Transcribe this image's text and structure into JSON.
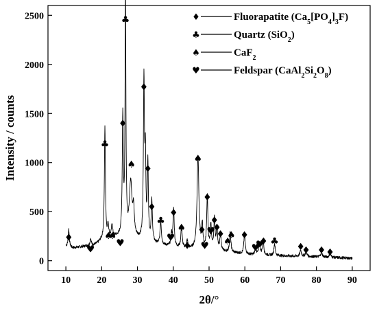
{
  "chart_data": {
    "type": "line",
    "title": "",
    "xlabel": "2θ/°",
    "ylabel": "Intensity / counts",
    "xlim": [
      5,
      95
    ],
    "ylim": [
      -100,
      2600
    ],
    "x_ticks": [
      10,
      20,
      30,
      40,
      50,
      60,
      70,
      80,
      90
    ],
    "y_ticks": [
      0,
      500,
      1000,
      1500,
      2000,
      2500
    ],
    "grid": false,
    "legend_position": "top-right",
    "legend": [
      {
        "symbol": "diamond",
        "glyph": "♦",
        "label": "Fluorapatite  (Ca5[PO4]3F)"
      },
      {
        "symbol": "club",
        "glyph": "♣",
        "label": "Quartz  (SiO2)"
      },
      {
        "symbol": "spade",
        "glyph": "♠",
        "label": "CaF2"
      },
      {
        "symbol": "heart",
        "glyph": "♥",
        "label": "Feldspar  (CaAl2Si2O8)"
      }
    ],
    "series": [
      {
        "baseline": [
          [
            10,
            150
          ],
          [
            12,
            130
          ],
          [
            14,
            140
          ],
          [
            16,
            150
          ],
          [
            18,
            160
          ],
          [
            19,
            180
          ],
          [
            20,
            210
          ],
          [
            24,
            240
          ],
          [
            30,
            215
          ],
          [
            34,
            175
          ],
          [
            38,
            150
          ],
          [
            44,
            120
          ],
          [
            50,
            105
          ],
          [
            56,
            85
          ],
          [
            62,
            60
          ],
          [
            70,
            50
          ],
          [
            80,
            40
          ],
          [
            90,
            25
          ]
        ],
        "peaks": [
          {
            "x": 10.8,
            "y": 180,
            "w": 0.18
          },
          {
            "x": 16.9,
            "y": 65,
            "w": 0.2
          },
          {
            "x": 20.9,
            "y": 1150,
            "w": 0.17
          },
          {
            "x": 21.8,
            "y": 130,
            "w": 0.2
          },
          {
            "x": 22.9,
            "y": 130,
            "w": 0.2
          },
          {
            "x": 25.9,
            "y": 1210,
            "w": 0.18
          },
          {
            "x": 26.65,
            "y": 2500,
            "w": 0.14
          },
          {
            "x": 28.1,
            "y": 560,
            "w": 0.45
          },
          {
            "x": 28.9,
            "y": 250,
            "w": 0.25
          },
          {
            "x": 31.8,
            "y": 1600,
            "w": 0.17
          },
          {
            "x": 32.2,
            "y": 820,
            "w": 0.17
          },
          {
            "x": 32.9,
            "y": 780,
            "w": 0.17
          },
          {
            "x": 34.0,
            "y": 420,
            "w": 0.2
          },
          {
            "x": 36.5,
            "y": 230,
            "w": 0.22
          },
          {
            "x": 39.5,
            "y": 120,
            "w": 0.2
          },
          {
            "x": 40.1,
            "y": 380,
            "w": 0.2
          },
          {
            "x": 42.3,
            "y": 230,
            "w": 0.2
          },
          {
            "x": 43.9,
            "y": 80,
            "w": 0.2
          },
          {
            "x": 46.9,
            "y": 960,
            "w": 0.3
          },
          {
            "x": 48.1,
            "y": 240,
            "w": 0.2
          },
          {
            "x": 49.5,
            "y": 540,
            "w": 0.2
          },
          {
            "x": 50.5,
            "y": 250,
            "w": 0.2
          },
          {
            "x": 51.5,
            "y": 320,
            "w": 0.2
          },
          {
            "x": 52.2,
            "y": 240,
            "w": 0.2
          },
          {
            "x": 53.2,
            "y": 180,
            "w": 0.2
          },
          {
            "x": 55.9,
            "y": 200,
            "w": 0.22
          },
          {
            "x": 59.9,
            "y": 200,
            "w": 0.22
          },
          {
            "x": 63.0,
            "y": 70,
            "w": 0.22
          },
          {
            "x": 64.1,
            "y": 130,
            "w": 0.22
          },
          {
            "x": 65.1,
            "y": 150,
            "w": 0.22
          },
          {
            "x": 68.3,
            "y": 120,
            "w": 0.22
          },
          {
            "x": 75.6,
            "y": 60,
            "w": 0.25
          },
          {
            "x": 77.1,
            "y": 50,
            "w": 0.25
          },
          {
            "x": 81.4,
            "y": 50,
            "w": 0.25
          },
          {
            "x": 83.8,
            "y": 40,
            "w": 0.25
          }
        ]
      }
    ],
    "annotations": [
      {
        "symbol": "diamond",
        "x": 10.8,
        "y": 240
      },
      {
        "symbol": "heart",
        "x": 16.9,
        "y": 120
      },
      {
        "symbol": "club",
        "x": 20.9,
        "y": 1190
      },
      {
        "symbol": "spade",
        "x": 21.9,
        "y": 255
      },
      {
        "symbol": "spade",
        "x": 23.0,
        "y": 255
      },
      {
        "symbol": "heart",
        "x": 25.2,
        "y": 185
      },
      {
        "symbol": "diamond",
        "x": 25.9,
        "y": 1400
      },
      {
        "symbol": "club",
        "x": 26.65,
        "y": 2455
      },
      {
        "symbol": "spade",
        "x": 28.3,
        "y": 985
      },
      {
        "symbol": "diamond",
        "x": 31.8,
        "y": 1770
      },
      {
        "symbol": "diamond",
        "x": 32.9,
        "y": 940
      },
      {
        "symbol": "diamond",
        "x": 34.0,
        "y": 550
      },
      {
        "symbol": "club",
        "x": 36.5,
        "y": 410
      },
      {
        "symbol": "heart",
        "x": 39.3,
        "y": 240
      },
      {
        "symbol": "diamond",
        "x": 40.1,
        "y": 490
      },
      {
        "symbol": "spade",
        "x": 42.3,
        "y": 340
      },
      {
        "symbol": "diamond",
        "x": 43.9,
        "y": 155
      },
      {
        "symbol": "spade",
        "x": 46.9,
        "y": 1045
      },
      {
        "symbol": "diamond",
        "x": 48.0,
        "y": 315
      },
      {
        "symbol": "heart",
        "x": 48.8,
        "y": 155
      },
      {
        "symbol": "diamond",
        "x": 49.5,
        "y": 650
      },
      {
        "symbol": "heart",
        "x": 50.5,
        "y": 305
      },
      {
        "symbol": "diamond",
        "x": 51.5,
        "y": 415
      },
      {
        "symbol": "diamond",
        "x": 52.2,
        "y": 340
      },
      {
        "symbol": "diamond",
        "x": 53.2,
        "y": 275
      },
      {
        "symbol": "spade",
        "x": 55.2,
        "y": 200
      },
      {
        "symbol": "spade",
        "x": 56.2,
        "y": 265
      },
      {
        "symbol": "diamond",
        "x": 59.9,
        "y": 265
      },
      {
        "symbol": "heart",
        "x": 63.0,
        "y": 135
      },
      {
        "symbol": "heart",
        "x": 64.2,
        "y": 170
      },
      {
        "symbol": "diamond",
        "x": 65.2,
        "y": 200
      },
      {
        "symbol": "club",
        "x": 68.3,
        "y": 200
      },
      {
        "symbol": "diamond",
        "x": 75.6,
        "y": 145
      },
      {
        "symbol": "diamond",
        "x": 77.1,
        "y": 110
      },
      {
        "symbol": "diamond",
        "x": 81.4,
        "y": 110
      },
      {
        "symbol": "diamond",
        "x": 83.8,
        "y": 90
      }
    ]
  }
}
